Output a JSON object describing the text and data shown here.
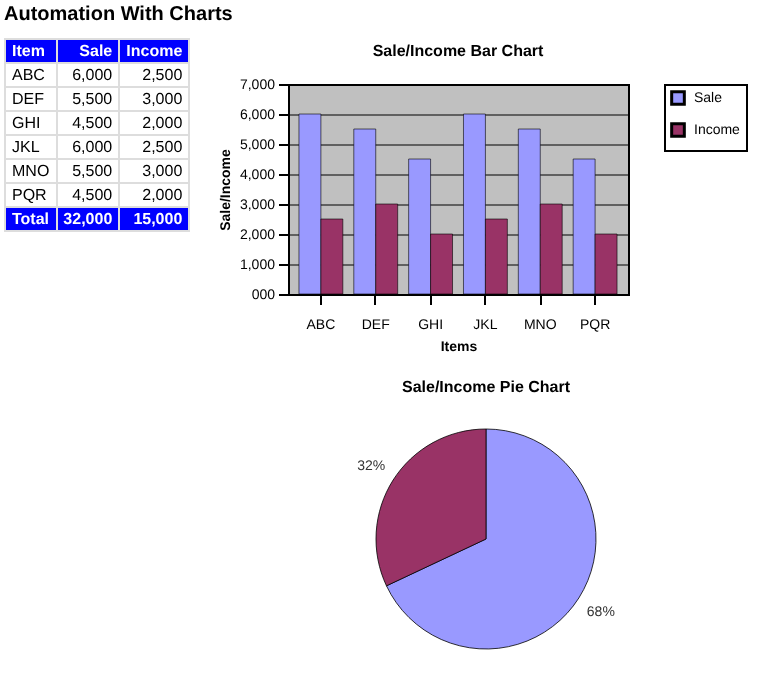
{
  "chart_data": [
    {
      "type": "other",
      "title": "Automation With Charts",
      "annotations": [
        "Item",
        "Sale",
        "Income",
        "ABC",
        "6,000",
        "2,500",
        "DEF",
        "5,500",
        "3,000",
        "GHI",
        "4,500",
        "2,000",
        "JKL",
        "6,000",
        "2,500",
        "MNO",
        "5,500",
        "3,000",
        "PQR",
        "4,500",
        "2,000",
        "Total",
        "32,000",
        "15,000"
      ]
    },
    {
      "type": "bar",
      "title": "Sale/Income Bar Chart",
      "xlabel": "Items",
      "ylabel": "Sale/Income",
      "categories": [
        "ABC",
        "DEF",
        "GHI",
        "JKL",
        "MNO",
        "PQR"
      ],
      "series": [
        {
          "name": "Sale",
          "color": "#9999ff",
          "values": [
            6000,
            5500,
            4500,
            6000,
            5500,
            4500
          ]
        },
        {
          "name": "Income",
          "color": "#993366",
          "values": [
            2500,
            3000,
            2000,
            2500,
            3000,
            2000
          ]
        }
      ],
      "ylim": [
        0,
        7000
      ],
      "yticks": [
        {
          "value": 0,
          "label": "000"
        },
        {
          "value": 1000,
          "label": "1,000"
        },
        {
          "value": 2000,
          "label": "2,000"
        },
        {
          "value": 3000,
          "label": "3,000"
        },
        {
          "value": 4000,
          "label": "4,000"
        },
        {
          "value": 5000,
          "label": "5,000"
        },
        {
          "value": 6000,
          "label": "6,000"
        },
        {
          "value": 7000,
          "label": "7,000"
        }
      ],
      "grid": "y",
      "legend": "right"
    },
    {
      "type": "pie",
      "title": "Sale/Income Pie Chart",
      "categories": [
        null,
        null
      ],
      "values": [
        68,
        32
      ],
      "colors": [
        "#9999ff",
        "#993366"
      ],
      "value_labels": [
        "68%",
        "32%"
      ]
    }
  ]
}
